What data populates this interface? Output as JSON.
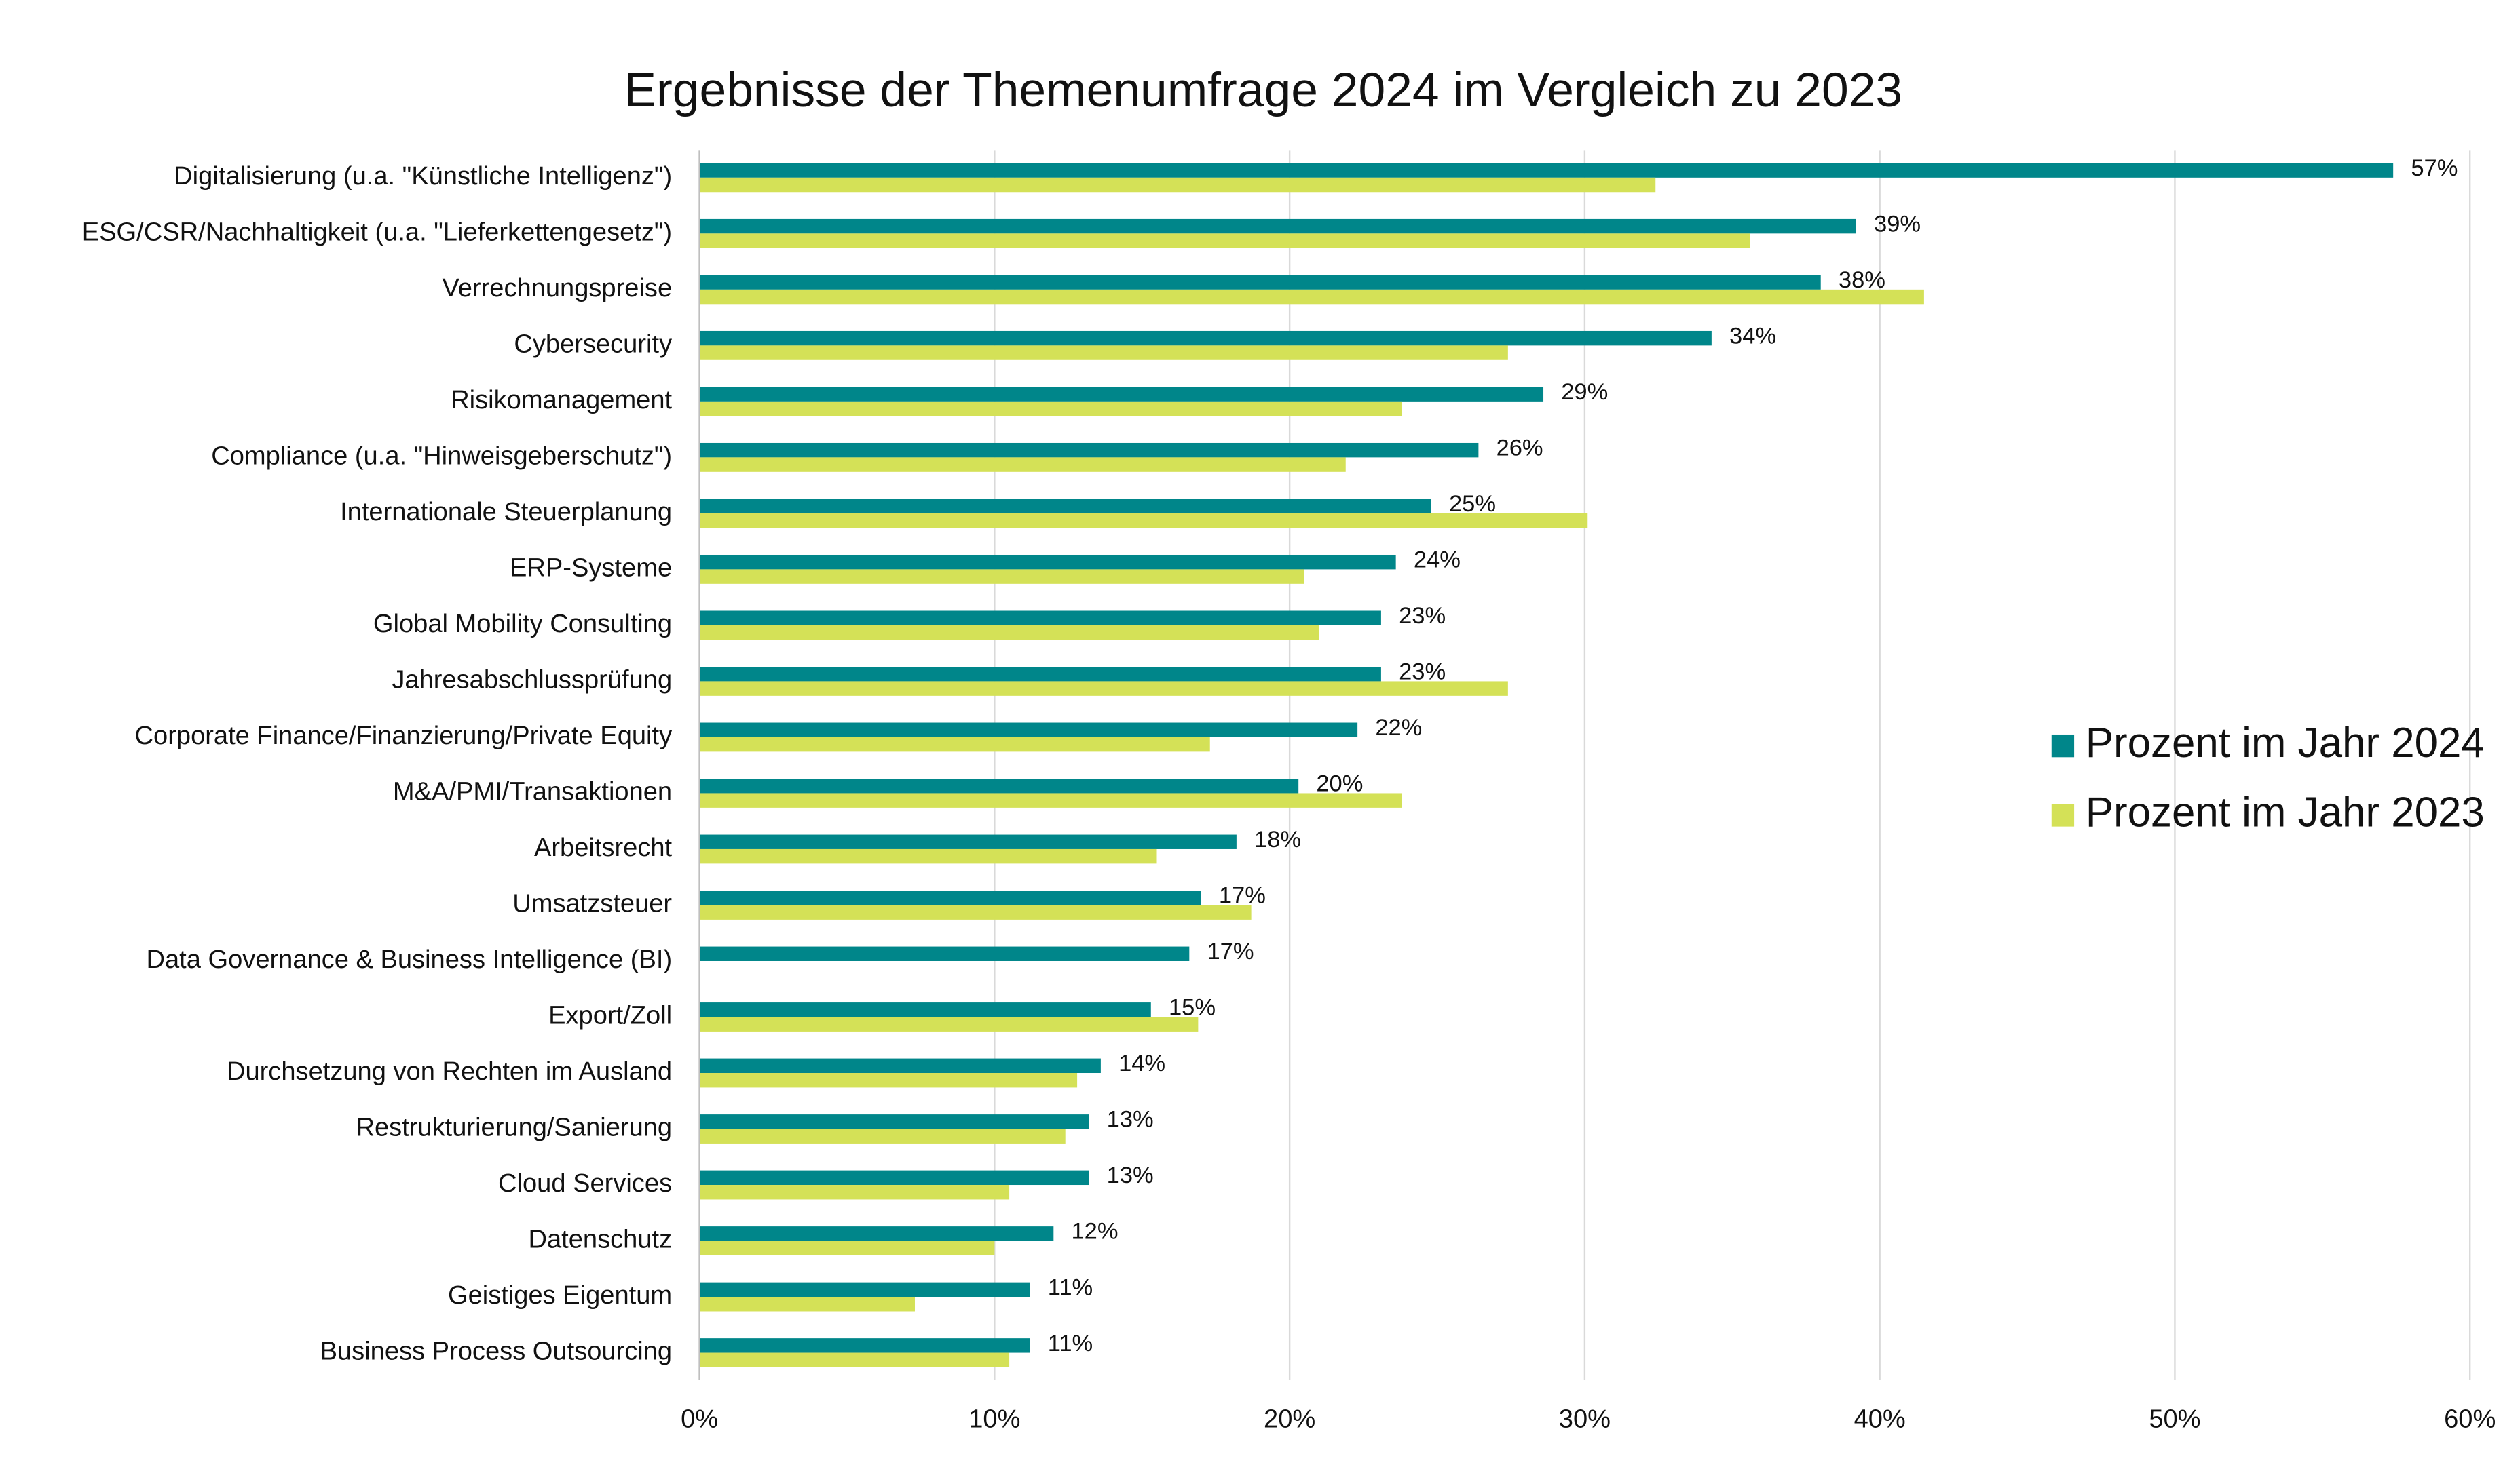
{
  "chart_data": {
    "type": "hbar",
    "title": "Ergebnisse der Themenumfrage 2024 im Vergleich zu 2023",
    "categories": [
      "Digitalisierung (u.a. \"Künstliche Intelligenz\")",
      "ESG/CSR/Nachhaltigkeit (u.a. \"Lieferkettengesetz\")",
      "Verrechnungspreise",
      "Cybersecurity",
      "Risikomanagement",
      "Compliance (u.a. \"Hinweisgeberschutz\")",
      "Internationale Steuerplanung",
      "ERP-Systeme",
      "Global Mobility Consulting",
      "Jahresabschlussprüfung",
      "Corporate Finance/Finanzierung/Private Equity",
      "M&A/PMI/Transaktionen",
      "Arbeitsrecht",
      "Umsatzsteuer",
      "Data Governance & Business Intelligence (BI)",
      "Export/Zoll",
      "Durchsetzung von Rechten im Ausland",
      "Restrukturierung/Sanierung",
      "Cloud Services",
      "Datenschutz",
      "Geistiges Eigentum",
      "Business Process Outsourcing"
    ],
    "series": [
      {
        "name": "Prozent im Jahr 2024",
        "color": "#00868a",
        "values": [
          57.4,
          39.2,
          38.0,
          34.3,
          28.6,
          26.4,
          24.8,
          23.6,
          23.1,
          23.1,
          22.3,
          20.3,
          18.2,
          17.0,
          16.6,
          15.3,
          13.6,
          13.2,
          13.2,
          12.0,
          11.2,
          11.2
        ],
        "value_labels": [
          "57%",
          "39%",
          "38%",
          "34%",
          "29%",
          "26%",
          "25%",
          "24%",
          "23%",
          "23%",
          "22%",
          "20%",
          "18%",
          "17%",
          "17%",
          "15%",
          "14%",
          "13%",
          "13%",
          "12%",
          "11%",
          "11%"
        ]
      },
      {
        "name": "Prozent im Jahr 2023",
        "color": "#d4e157",
        "values": [
          32.4,
          35.6,
          41.5,
          27.4,
          23.8,
          21.9,
          30.1,
          20.5,
          21.0,
          27.4,
          17.3,
          23.8,
          15.5,
          18.7,
          null,
          16.9,
          12.8,
          12.4,
          10.5,
          10.0,
          7.3,
          10.5
        ]
      }
    ],
    "xlim": [
      0,
      60
    ],
    "xticks": [
      {
        "value": 0,
        "label": "0%"
      },
      {
        "value": 10,
        "label": "10%"
      },
      {
        "value": 20,
        "label": "20%"
      },
      {
        "value": 30,
        "label": "30%"
      },
      {
        "value": 40,
        "label": "40%"
      },
      {
        "value": 50,
        "label": "50%"
      },
      {
        "value": 60,
        "label": "60%"
      }
    ],
    "grid": true,
    "legend": "right"
  }
}
